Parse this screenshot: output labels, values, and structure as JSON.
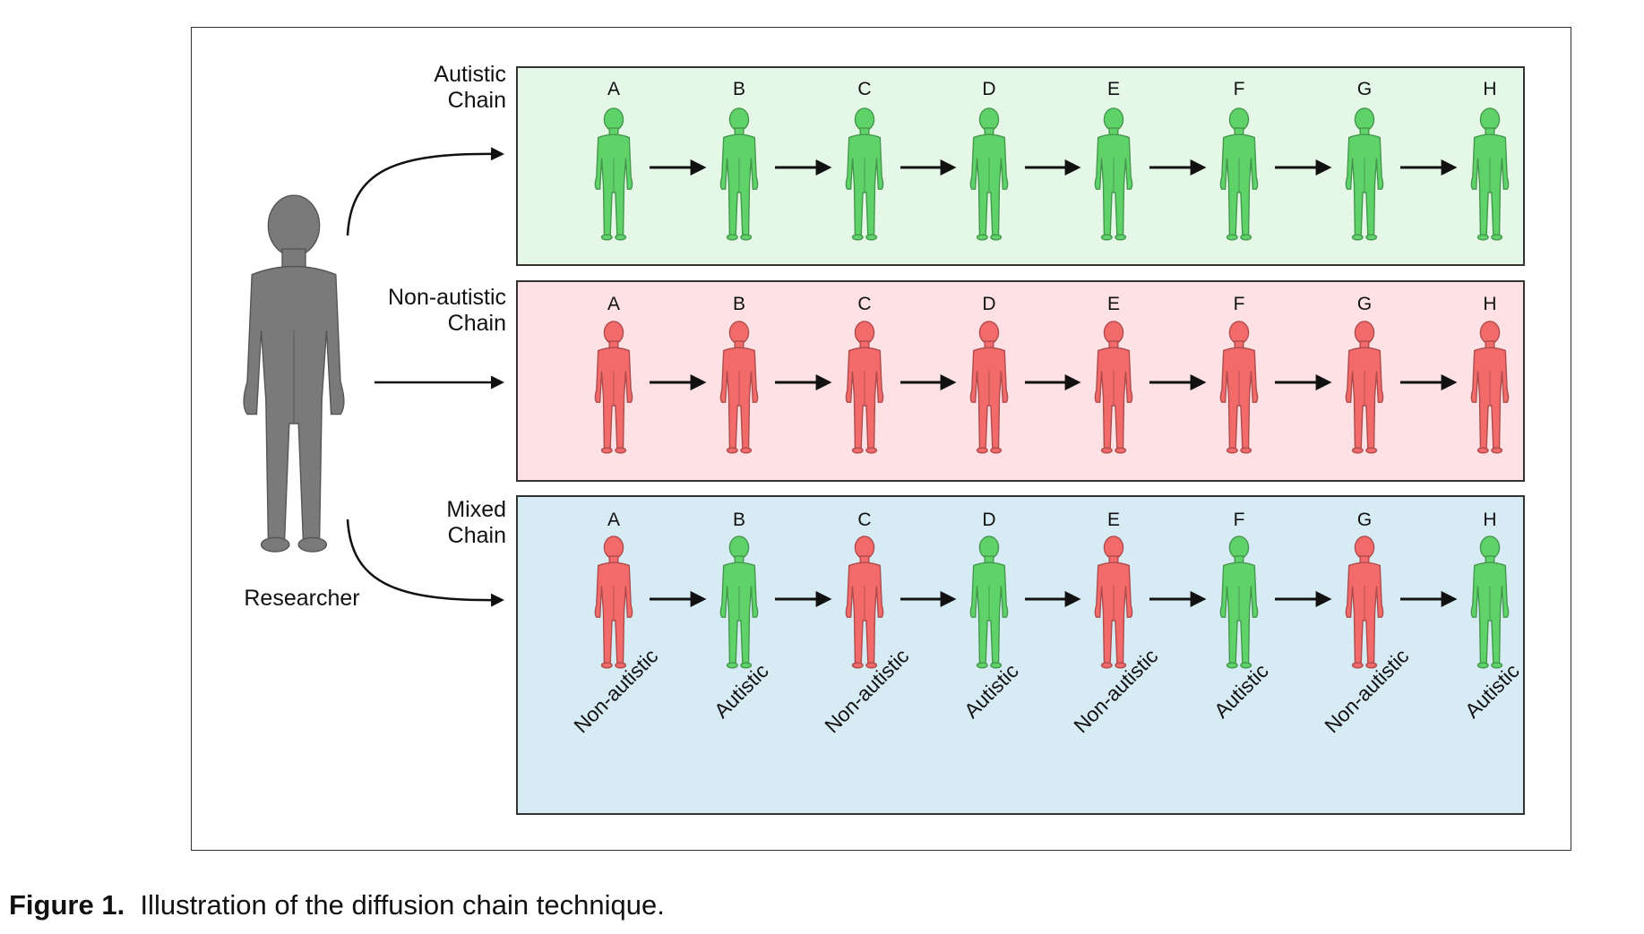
{
  "caption": {
    "label": "Figure 1.",
    "text": "Illustration of the diffusion chain technique."
  },
  "researcher": {
    "label": "Researcher",
    "color": "#7a7a7a"
  },
  "colors": {
    "autistic": "#5fd36a",
    "non_autistic": "#f36a6a",
    "panel_autistic": "#e5f7e6",
    "panel_non_autistic": "#fde1e5",
    "panel_mixed": "#d7ebf5"
  },
  "position_labels": [
    "A",
    "B",
    "C",
    "D",
    "E",
    "F",
    "G",
    "H"
  ],
  "chains": [
    {
      "name_line1": "Autistic",
      "name_line2": "Chain",
      "members": [
        "autistic",
        "autistic",
        "autistic",
        "autistic",
        "autistic",
        "autistic",
        "autistic",
        "autistic"
      ]
    },
    {
      "name_line1": "Non-autistic",
      "name_line2": "Chain",
      "members": [
        "non_autistic",
        "non_autistic",
        "non_autistic",
        "non_autistic",
        "non_autistic",
        "non_autistic",
        "non_autistic",
        "non_autistic"
      ]
    },
    {
      "name_line1": "Mixed",
      "name_line2": "Chain",
      "members": [
        "non_autistic",
        "autistic",
        "non_autistic",
        "autistic",
        "non_autistic",
        "autistic",
        "non_autistic",
        "autistic"
      ],
      "member_labels": [
        "Non-autistic",
        "Autistic",
        "Non-autistic",
        "Autistic",
        "Non-autistic",
        "Autistic",
        "Non-autistic",
        "Autistic"
      ]
    }
  ]
}
